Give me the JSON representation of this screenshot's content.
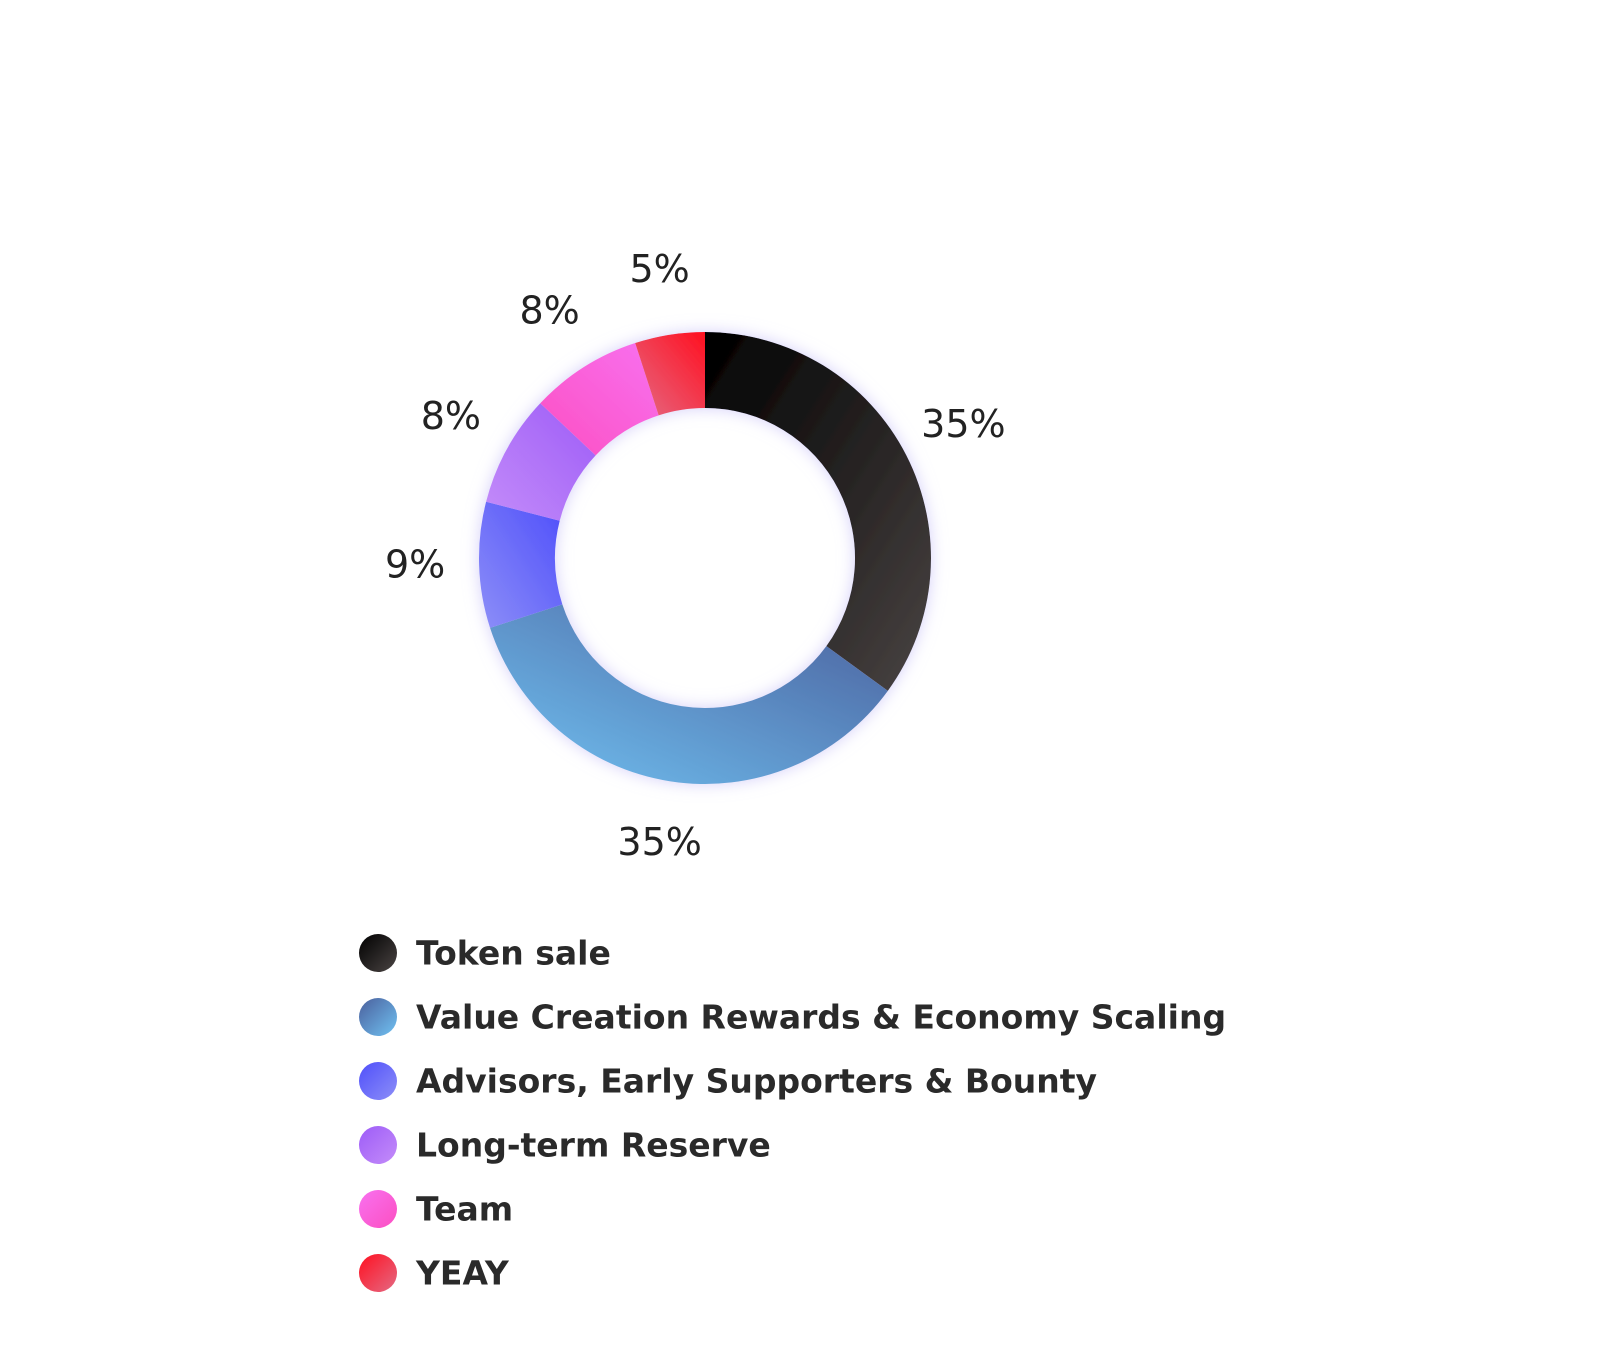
{
  "chart_data": {
    "type": "donut",
    "categories": [
      "Token sale",
      "Value Creation Rewards & Economy Scaling",
      "Advisors, Early Supporters & Bounty",
      "Long-term Reserve",
      "Team",
      "YEAY"
    ],
    "values": [
      35,
      35,
      9,
      8,
      8,
      5
    ],
    "value_labels": [
      "35%",
      "35%",
      "9%",
      "8%",
      "8%",
      "5%"
    ],
    "colors": [
      [
        "#000000",
        "#4a4443"
      ],
      [
        "#4a5f9c",
        "#70c2f2"
      ],
      [
        "#4f4ffa",
        "#8d8ff8"
      ],
      [
        "#9d5cf8",
        "#c48cf9"
      ],
      [
        "#f871f0",
        "#fc4fc1"
      ],
      [
        "#ff1020",
        "#e46a84"
      ]
    ],
    "legend": "bottom"
  }
}
